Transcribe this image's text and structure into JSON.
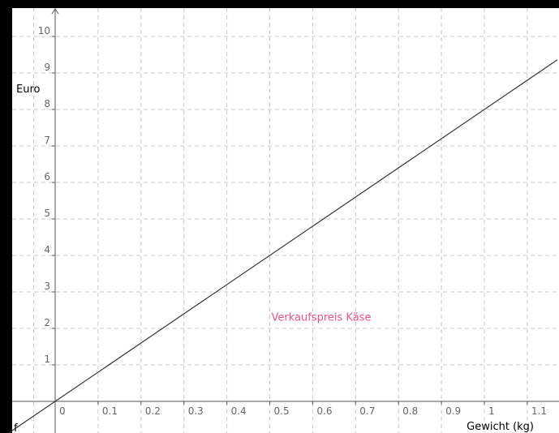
{
  "chart_data": {
    "type": "line",
    "xlabel": "Gewicht (kg)",
    "ylabel": "Euro",
    "x_ticks": [
      "0",
      "0.1",
      "0.2",
      "0.3",
      "0.4",
      "0.5",
      "0.6",
      "0.7",
      "0.8",
      "0.9",
      "1",
      "1.1"
    ],
    "y_ticks": [
      "1",
      "2",
      "3",
      "4",
      "5",
      "6",
      "7",
      "8",
      "9",
      "10"
    ],
    "xlim": [
      -0.13,
      1.17
    ],
    "ylim": [
      -0.8,
      10.9
    ],
    "grid": true,
    "series": [
      {
        "name": "f",
        "equation": "y = 8x",
        "slope": 8,
        "intercept": 0,
        "x": [
          -0.13,
          0,
          0.5,
          1,
          1.17
        ],
        "y": [
          -1.04,
          0,
          4,
          8,
          9.36
        ]
      }
    ],
    "annotations": [
      {
        "text": "Verkaufspreis Käse",
        "x": 0.62,
        "y": 2.3
      }
    ]
  },
  "colors": {
    "background": "#ffffff",
    "frame": "#000000",
    "grid": "#c8c8c8",
    "axis": "#555555",
    "line": "#333333",
    "annotation": "#f0508c"
  }
}
